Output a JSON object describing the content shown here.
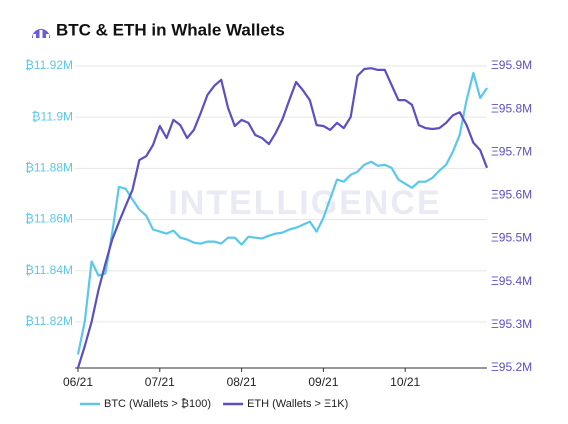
{
  "chart_data": {
    "type": "line",
    "title": "BTC & ETH in Whale Wallets",
    "watermark": "INTELLIGENCE",
    "categories": [
      "06/21",
      null,
      null,
      null,
      null,
      null,
      null,
      null,
      null,
      null,
      null,
      null,
      "07/21",
      null,
      null,
      null,
      null,
      null,
      null,
      null,
      null,
      null,
      null,
      null,
      "08/21",
      null,
      null,
      null,
      null,
      null,
      null,
      null,
      null,
      null,
      null,
      null,
      "09/21",
      null,
      null,
      null,
      null,
      null,
      null,
      null,
      null,
      null,
      null,
      null,
      "10/21",
      null,
      null,
      null,
      null,
      null,
      null,
      null,
      null,
      null,
      null,
      null,
      null
    ],
    "series": [
      {
        "name": "BTC (Wallets > ₿100)",
        "color": "#5bc8eb",
        "axis": "y",
        "values": [
          11.8073,
          11.8202,
          11.8436,
          11.8381,
          11.8389,
          11.8545,
          11.8728,
          11.872,
          11.8678,
          11.8639,
          11.8615,
          11.8561,
          11.8553,
          11.8545,
          11.8557,
          11.8529,
          11.8522,
          11.851,
          11.8506,
          11.8514,
          11.8514,
          11.8506,
          11.8529,
          11.8529,
          11.8502,
          11.8533,
          11.8529,
          11.8526,
          11.8537,
          11.8545,
          11.8549,
          11.8561,
          11.8568,
          11.858,
          11.8592,
          11.8553,
          11.8607,
          11.8681,
          11.8756,
          11.8748,
          11.8775,
          11.8787,
          11.8814,
          11.8826,
          11.881,
          11.8814,
          11.8802,
          11.8756,
          11.874,
          11.8724,
          11.8748,
          11.8748,
          11.8763,
          11.8791,
          11.8814,
          11.8865,
          11.8931,
          11.9067,
          11.9173,
          11.9075,
          11.9114
        ]
      },
      {
        "name": "ETH (Wallets > Ξ1K)",
        "color": "#5b4fc4",
        "axis": "y2",
        "values": [
          95.2,
          95.251,
          95.307,
          95.381,
          95.441,
          95.497,
          95.538,
          95.576,
          95.613,
          95.682,
          95.691,
          95.717,
          95.761,
          95.733,
          95.775,
          95.763,
          95.733,
          95.752,
          95.791,
          95.833,
          95.854,
          95.868,
          95.803,
          95.761,
          95.775,
          95.768,
          95.74,
          95.733,
          95.719,
          95.745,
          95.777,
          95.821,
          95.863,
          95.844,
          95.821,
          95.763,
          95.761,
          95.752,
          95.768,
          95.756,
          95.782,
          95.877,
          95.893,
          95.895,
          95.891,
          95.891,
          95.856,
          95.821,
          95.821,
          95.81,
          95.763,
          95.756,
          95.754,
          95.756,
          95.768,
          95.786,
          95.793,
          95.763,
          95.722,
          95.705,
          95.664
        ]
      }
    ],
    "ylim": [
      11.802,
      11.92
    ],
    "yticks": [
      {
        "value": 11.82,
        "label": "₿11.82M"
      },
      {
        "value": 11.84,
        "label": "₿11.84M"
      },
      {
        "value": 11.86,
        "label": "₿11.86M"
      },
      {
        "value": 11.88,
        "label": "₿11.88M"
      },
      {
        "value": 11.9,
        "label": "₿11.9M"
      },
      {
        "value": 11.92,
        "label": "₿11.92M"
      }
    ],
    "y2lim": [
      95.2,
      95.9
    ],
    "y2ticks": [
      {
        "value": 95.2,
        "label": "Ξ95.2M"
      },
      {
        "value": 95.3,
        "label": "Ξ95.3M"
      },
      {
        "value": 95.4,
        "label": "Ξ95.4M"
      },
      {
        "value": 95.5,
        "label": "Ξ95.5M"
      },
      {
        "value": 95.6,
        "label": "Ξ95.6M"
      },
      {
        "value": 95.7,
        "label": "Ξ95.7M"
      },
      {
        "value": 95.8,
        "label": "Ξ95.8M"
      },
      {
        "value": 95.9,
        "label": "Ξ95.9M"
      }
    ],
    "grid": true
  }
}
